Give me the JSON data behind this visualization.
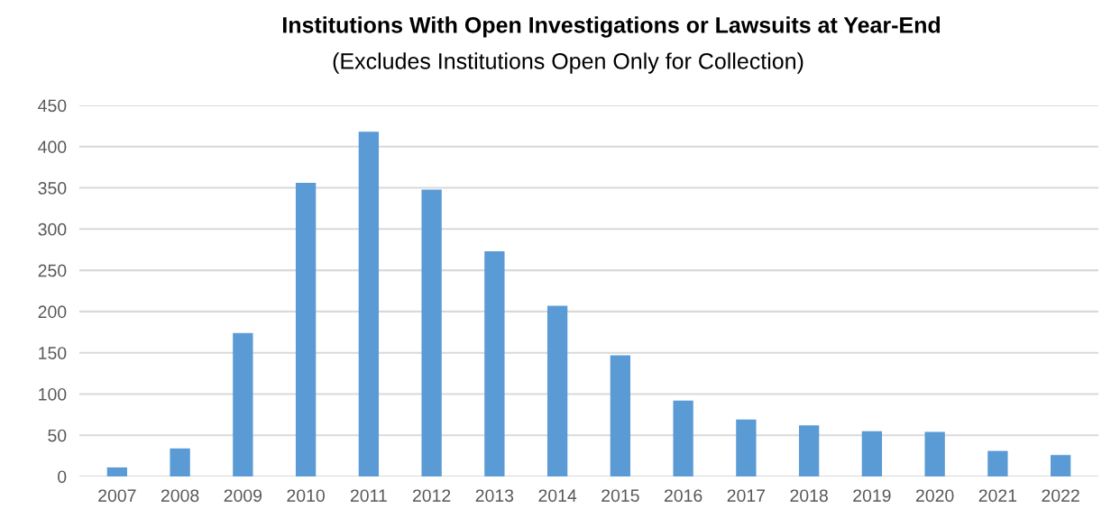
{
  "chart_data": {
    "type": "bar",
    "title": "Institutions With Open Investigations or Lawsuits at Year-End",
    "subtitle": "(Excludes Institutions Open Only for Collection)",
    "categories": [
      "2007",
      "2008",
      "2009",
      "2010",
      "2011",
      "2012",
      "2013",
      "2014",
      "2015",
      "2016",
      "2017",
      "2018",
      "2019",
      "2020",
      "2021",
      "2022"
    ],
    "values": [
      11,
      34,
      174,
      356,
      418,
      348,
      273,
      207,
      147,
      92,
      69,
      62,
      55,
      54,
      31,
      26
    ],
    "color": "#5b9bd5",
    "ylim": [
      0,
      450
    ],
    "yticks": [
      0,
      50,
      100,
      150,
      200,
      250,
      300,
      350,
      400,
      450
    ],
    "grid": "y",
    "legend": false
  }
}
